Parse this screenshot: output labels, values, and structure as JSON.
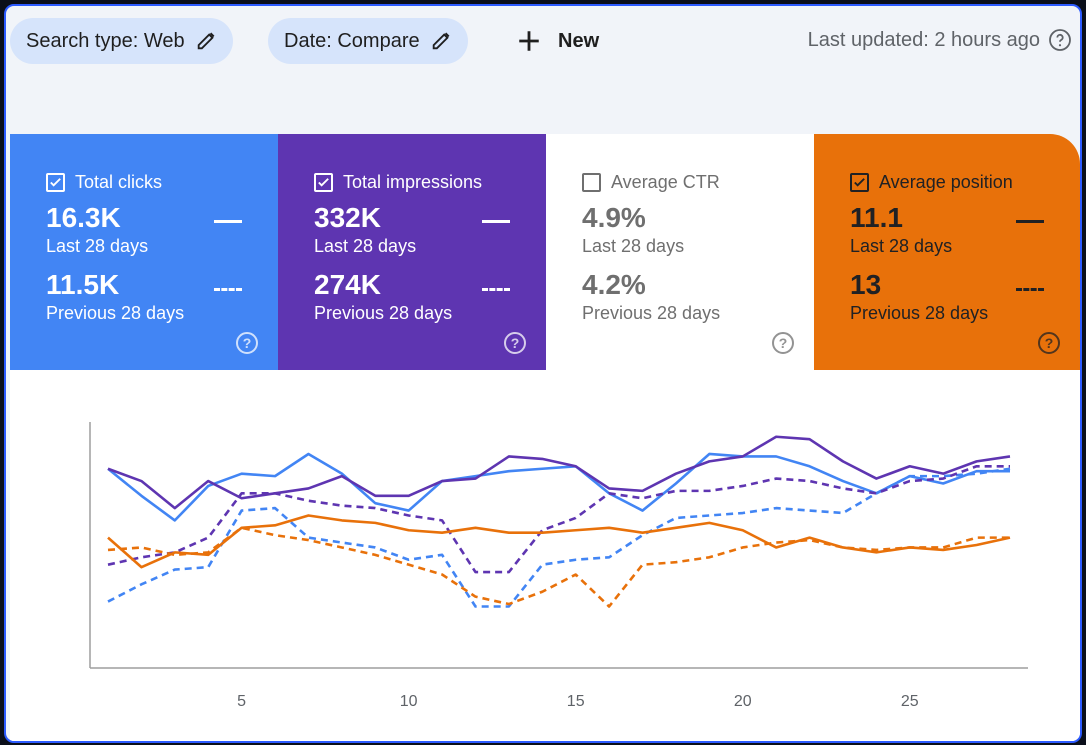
{
  "toolbar": {
    "search_type_label": "Search type: Web",
    "date_label": "Date: Compare",
    "new_label": "New",
    "last_updated": "Last updated: 2 hours ago"
  },
  "cards": [
    {
      "key": "clicks",
      "title": "Total clicks",
      "checked": true,
      "current_value": "16.3K",
      "current_period": "Last 28 days",
      "previous_value": "11.5K",
      "previous_period": "Previous 28 days",
      "color": "#4285f4"
    },
    {
      "key": "impr",
      "title": "Total impressions",
      "checked": true,
      "current_value": "332K",
      "current_period": "Last 28 days",
      "previous_value": "274K",
      "previous_period": "Previous 28 days",
      "color": "#5e35b1"
    },
    {
      "key": "ctr",
      "title": "Average CTR",
      "checked": false,
      "current_value": "4.9%",
      "current_period": "Last 28 days",
      "previous_value": "4.2%",
      "previous_period": "Previous 28 days",
      "color": "#ffffff"
    },
    {
      "key": "pos",
      "title": "Average position",
      "checked": true,
      "current_value": "11.1",
      "current_period": "Last 28 days",
      "previous_value": "13",
      "previous_period": "Previous 28 days",
      "color": "#e8710a"
    }
  ],
  "chart_data": {
    "type": "line",
    "x": [
      1,
      2,
      3,
      4,
      5,
      6,
      7,
      8,
      9,
      10,
      11,
      12,
      13,
      14,
      15,
      16,
      17,
      18,
      19,
      20,
      21,
      22,
      23,
      24,
      25,
      26,
      27,
      28
    ],
    "xticks": [
      "5",
      "10",
      "15",
      "20",
      "25"
    ],
    "xtick_values": [
      5,
      10,
      15,
      20,
      25
    ],
    "ylim": [
      0,
      100
    ],
    "grid": false,
    "series": [
      {
        "metric": "clicks",
        "period": "current",
        "style": "solid",
        "color": "#4285f4",
        "values": [
          81,
          70,
          60,
          74,
          79,
          78,
          87,
          79,
          67,
          64,
          76,
          78,
          80,
          81,
          82,
          71,
          64,
          75,
          87,
          86,
          86,
          82,
          76,
          71,
          78,
          75,
          80,
          80
        ]
      },
      {
        "metric": "clicks",
        "period": "previous",
        "style": "dashed",
        "color": "#4285f4",
        "values": [
          27,
          34,
          40,
          41,
          64,
          65,
          53,
          51,
          49,
          44,
          46,
          25,
          25,
          42,
          44,
          45,
          54,
          61,
          62,
          63,
          65,
          64,
          63,
          71,
          78,
          78,
          79,
          81
        ]
      },
      {
        "metric": "impr",
        "period": "current",
        "style": "solid",
        "color": "#5e35b1",
        "values": [
          81,
          76,
          65,
          76,
          69,
          71,
          73,
          78,
          70,
          70,
          76,
          77,
          86,
          85,
          82,
          73,
          72,
          79,
          84,
          86,
          94,
          93,
          84,
          77,
          82,
          79,
          84,
          86
        ]
      },
      {
        "metric": "impr",
        "period": "previous",
        "style": "dashed",
        "color": "#5e35b1",
        "values": [
          42,
          45,
          47,
          53,
          71,
          71,
          68,
          66,
          65,
          62,
          60,
          39,
          39,
          56,
          61,
          71,
          69,
          72,
          72,
          74,
          77,
          76,
          73,
          71,
          76,
          77,
          82,
          82
        ]
      },
      {
        "metric": "pos",
        "period": "current",
        "style": "solid",
        "color": "#e8710a",
        "values": [
          53,
          41,
          47,
          46,
          57,
          58,
          62,
          60,
          59,
          56,
          55,
          57,
          55,
          55,
          56,
          57,
          55,
          57,
          59,
          56,
          49,
          53,
          49,
          47,
          49,
          48,
          50,
          53
        ]
      },
      {
        "metric": "pos",
        "period": "previous",
        "style": "dashed",
        "color": "#e8710a",
        "values": [
          48,
          49,
          46,
          47,
          57,
          54,
          52,
          49,
          46,
          42,
          38,
          29,
          26,
          31,
          38,
          25,
          42,
          43,
          45,
          49,
          51,
          52,
          49,
          48,
          49,
          49,
          53,
          53
        ]
      }
    ]
  }
}
